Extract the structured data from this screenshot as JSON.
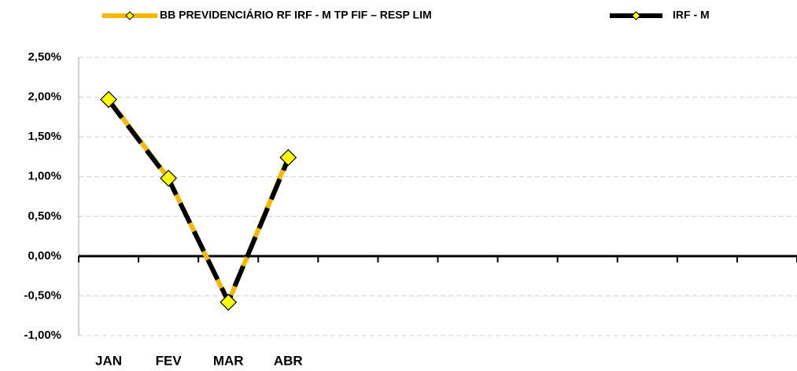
{
  "chart_data": {
    "type": "line",
    "categories": [
      "JAN",
      "FEV",
      "MAR",
      "ABR",
      null,
      null,
      null,
      null,
      null,
      null,
      null,
      null
    ],
    "series": [
      {
        "name": "BB PREVIDENCIÁRIO RF IRF - M TP FIF – RESP LIM",
        "color": "#f5b800",
        "values": [
          1.97,
          0.98,
          -0.58,
          1.24,
          null,
          null,
          null,
          null,
          null,
          null,
          null,
          null
        ]
      },
      {
        "name": "IRF - M",
        "color": "#000000",
        "values": [
          1.96,
          0.97,
          -0.57,
          1.22,
          null,
          null,
          null,
          null,
          null,
          null,
          null,
          null
        ]
      }
    ],
    "ylim": [
      -1,
      2.5
    ],
    "yticks": [
      {
        "value": -1,
        "label": "-1,00%"
      },
      {
        "value": -0.5,
        "label": "-0,50%"
      },
      {
        "value": 0,
        "label": "0,00%"
      },
      {
        "value": 0.5,
        "label": "0,50%"
      },
      {
        "value": 1,
        "label": "1,00%"
      },
      {
        "value": 1.5,
        "label": "1,50%"
      },
      {
        "value": 2,
        "label": "2,00%"
      },
      {
        "value": 2.5,
        "label": "2,50%"
      }
    ],
    "grid": true
  }
}
